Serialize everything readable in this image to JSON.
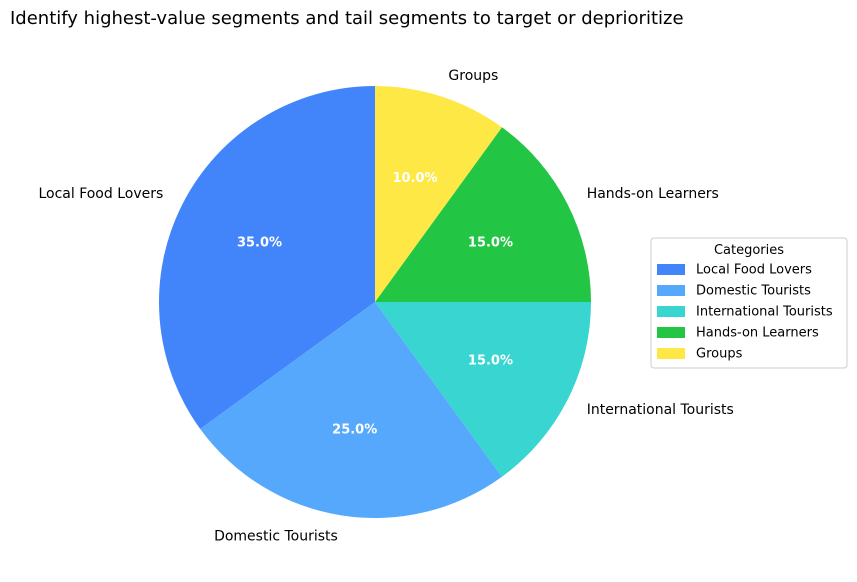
{
  "chart_data": {
    "type": "pie",
    "title": "Identify highest-value segments and tail segments to target or deprioritize",
    "categories": [
      "Local Food Lovers",
      "Domestic Tourists",
      "International Tourists",
      "Hands-on Learners",
      "Groups"
    ],
    "values": [
      35.0,
      25.0,
      15.0,
      15.0,
      10.0
    ],
    "percent_labels": [
      "35.0%",
      "25.0%",
      "15.0%",
      "15.0%",
      "10.0%"
    ],
    "colors": [
      "#4285fb",
      "#56a8fc",
      "#38d5d1",
      "#23c545",
      "#fde846"
    ],
    "start_angle_deg": 90,
    "direction": "counterclockwise",
    "legend": {
      "title": "Categories",
      "position": "right"
    }
  }
}
